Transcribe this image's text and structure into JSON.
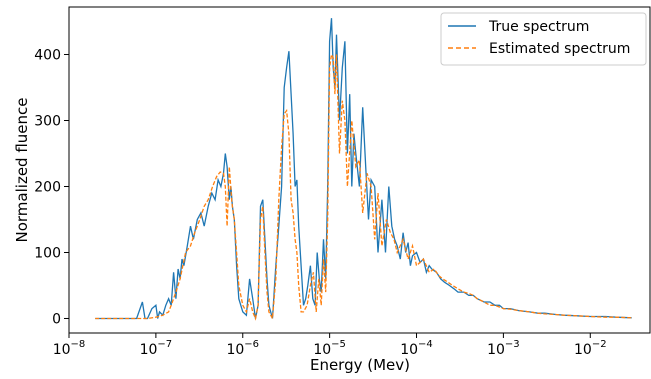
{
  "chart_data": {
    "type": "line",
    "xlabel": "Energy (Mev)",
    "ylabel": "Normalized fluence",
    "xscale": "log",
    "xlim": [
      1e-08,
      0.05
    ],
    "ylim": [
      -22,
      472
    ],
    "grid": false,
    "legend_position": "top-right",
    "x_ticks": [
      {
        "value": 1e-08,
        "base": "10",
        "exp": "−8"
      },
      {
        "value": 1e-07,
        "base": "10",
        "exp": "−7"
      },
      {
        "value": 1e-06,
        "base": "10",
        "exp": "−6"
      },
      {
        "value": 1e-05,
        "base": "10",
        "exp": "−5"
      },
      {
        "value": 0.0001,
        "base": "10",
        "exp": "−4"
      },
      {
        "value": 0.001,
        "base": "10",
        "exp": "−3"
      },
      {
        "value": 0.01,
        "base": "10",
        "exp": "−2"
      }
    ],
    "y_ticks": [
      0,
      100,
      200,
      300,
      400
    ],
    "series": [
      {
        "name": "True spectrum",
        "color": "#1f77b4",
        "style": "solid",
        "x": [
          2e-08,
          6e-08,
          7e-08,
          7.5e-08,
          8e-08,
          9e-08,
          1e-07,
          1.05e-07,
          1.1e-07,
          1.2e-07,
          1.3e-07,
          1.4e-07,
          1.5e-07,
          1.6e-07,
          1.7e-07,
          1.8e-07,
          1.9e-07,
          2e-07,
          2.1e-07,
          2.3e-07,
          2.5e-07,
          2.7e-07,
          3e-07,
          3.3e-07,
          3.6e-07,
          4e-07,
          4.4e-07,
          4.8e-07,
          5.2e-07,
          5.6e-07,
          6e-07,
          6.3e-07,
          6.6e-07,
          7e-07,
          7.3e-07,
          7.6e-07,
          8e-07,
          8.5e-07,
          9e-07,
          1e-06,
          1.1e-06,
          1.2e-06,
          1.3e-06,
          1.4e-06,
          1.5e-06,
          1.6e-06,
          1.7e-06,
          1.8e-06,
          1.9e-06,
          2e-06,
          2.2e-06,
          2.4e-06,
          2.6e-06,
          2.8e-06,
          3e-06,
          3.2e-06,
          3.4e-06,
          3.6e-06,
          3.8e-06,
          4e-06,
          4.2e-06,
          4.4e-06,
          4.7e-06,
          5e-06,
          5.3e-06,
          5.6e-06,
          6e-06,
          6.4e-06,
          6.8e-06,
          7.2e-06,
          7.6e-06,
          8e-06,
          8.5e-06,
          9e-06,
          9.5e-06,
          1e-05,
          1.05e-05,
          1.1e-05,
          1.15e-05,
          1.2e-05,
          1.3e-05,
          1.4e-05,
          1.5e-05,
          1.6e-05,
          1.7e-05,
          1.8e-05,
          1.9e-05,
          2e-05,
          2.2e-05,
          2.4e-05,
          2.6e-05,
          2.8e-05,
          3e-05,
          3.3e-05,
          3.6e-05,
          4e-05,
          4.4e-05,
          4.8e-05,
          5.2e-05,
          5.6e-05,
          6e-05,
          6.5e-05,
          7e-05,
          7.5e-05,
          8e-05,
          8.5e-05,
          9e-05,
          0.0001,
          0.00011,
          0.00012,
          0.00013,
          0.00014,
          0.00015,
          0.00017,
          0.00019,
          0.00021,
          0.00024,
          0.00027,
          0.0003,
          0.00035,
          0.0004,
          0.00045,
          0.0005,
          0.0006,
          0.0007,
          0.0008,
          0.0009,
          0.001,
          0.0012,
          0.0015,
          0.002,
          0.0025,
          0.003,
          0.004,
          0.005,
          0.007,
          0.01,
          0.015,
          0.02,
          0.03
        ],
        "y": [
          0,
          0,
          25,
          0,
          0,
          15,
          20,
          0,
          10,
          5,
          20,
          30,
          20,
          70,
          30,
          75,
          60,
          90,
          80,
          110,
          140,
          120,
          150,
          160,
          140,
          170,
          190,
          180,
          210,
          200,
          220,
          250,
          230,
          180,
          200,
          170,
          150,
          80,
          30,
          10,
          5,
          60,
          30,
          0,
          20,
          170,
          180,
          120,
          60,
          20,
          0,
          80,
          140,
          200,
          350,
          380,
          405,
          340,
          280,
          200,
          210,
          140,
          80,
          20,
          30,
          50,
          80,
          30,
          20,
          100,
          60,
          40,
          120,
          60,
          200,
          420,
          455,
          380,
          350,
          430,
          300,
          380,
          420,
          250,
          340,
          200,
          280,
          250,
          200,
          320,
          230,
          150,
          210,
          200,
          100,
          180,
          100,
          200,
          140,
          120,
          110,
          90,
          130,
          100,
          115,
          80,
          95,
          100,
          85,
          90,
          70,
          80,
          75,
          70,
          60,
          55,
          50,
          45,
          40,
          40,
          35,
          35,
          30,
          25,
          25,
          20,
          20,
          15,
          15,
          12,
          10,
          8,
          8,
          6,
          5,
          4,
          3,
          3,
          2,
          1
        ]
      },
      {
        "name": "Estimated spectrum",
        "color": "#ff7f0e",
        "style": "dashed",
        "x": [
          2e-08,
          8e-08,
          1e-07,
          1.2e-07,
          1.4e-07,
          1.5e-07,
          1.7e-07,
          1.9e-07,
          2.2e-07,
          2.5e-07,
          2.8e-07,
          3.2e-07,
          3.6e-07,
          4e-07,
          4.5e-07,
          5e-07,
          5.5e-07,
          6e-07,
          6.3e-07,
          6.6e-07,
          7e-07,
          7.5e-07,
          8e-07,
          8.5e-07,
          9e-07,
          1e-06,
          1.1e-06,
          1.2e-06,
          1.3e-06,
          1.4e-06,
          1.5e-06,
          1.6e-06,
          1.7e-06,
          1.8e-06,
          1.9e-06,
          2e-06,
          2.2e-06,
          2.4e-06,
          2.6e-06,
          2.8e-06,
          3e-06,
          3.2e-06,
          3.4e-06,
          3.6e-06,
          3.8e-06,
          4e-06,
          4.2e-06,
          4.4e-06,
          4.7e-06,
          5e-06,
          5.5e-06,
          6e-06,
          6.5e-06,
          7e-06,
          7.5e-06,
          8e-06,
          8.5e-06,
          9e-06,
          9.5e-06,
          1e-05,
          1.05e-05,
          1.1e-05,
          1.15e-05,
          1.2e-05,
          1.3e-05,
          1.4e-05,
          1.5e-05,
          1.6e-05,
          1.8e-05,
          2e-05,
          2.2e-05,
          2.4e-05,
          2.7e-05,
          3e-05,
          3.3e-05,
          3.6e-05,
          4e-05,
          4.5e-05,
          5e-05,
          5.5e-05,
          6e-05,
          7e-05,
          8e-05,
          9e-05,
          0.0001,
          0.00012,
          0.00014,
          0.00016,
          0.00018,
          0.0002,
          0.00023,
          0.00026,
          0.0003,
          0.00035,
          0.0004,
          0.00045,
          0.0005,
          0.0006,
          0.0007,
          0.0008,
          0.001,
          0.0012,
          0.0015,
          0.002,
          0.0025,
          0.003,
          0.004,
          0.005,
          0.007,
          0.01,
          0.015,
          0.02,
          0.03
        ],
        "y": [
          0,
          0,
          2,
          5,
          10,
          20,
          40,
          60,
          100,
          110,
          130,
          150,
          170,
          180,
          200,
          215,
          222,
          220,
          200,
          140,
          230,
          175,
          150,
          100,
          50,
          20,
          10,
          30,
          10,
          0,
          20,
          150,
          170,
          100,
          40,
          10,
          0,
          60,
          180,
          260,
          310,
          315,
          280,
          180,
          160,
          120,
          100,
          50,
          10,
          10,
          20,
          50,
          70,
          10,
          60,
          20,
          90,
          40,
          150,
          380,
          400,
          395,
          340,
          400,
          250,
          330,
          300,
          200,
          300,
          230,
          240,
          160,
          220,
          200,
          120,
          190,
          110,
          150,
          130,
          120,
          100,
          120,
          90,
          110,
          80,
          90,
          70,
          75,
          65,
          60,
          55,
          50,
          45,
          40,
          38,
          35,
          30,
          25,
          20,
          20,
          15,
          14,
          12,
          10,
          8,
          7,
          6,
          5,
          4,
          3,
          2,
          2,
          1
        ]
      }
    ]
  }
}
